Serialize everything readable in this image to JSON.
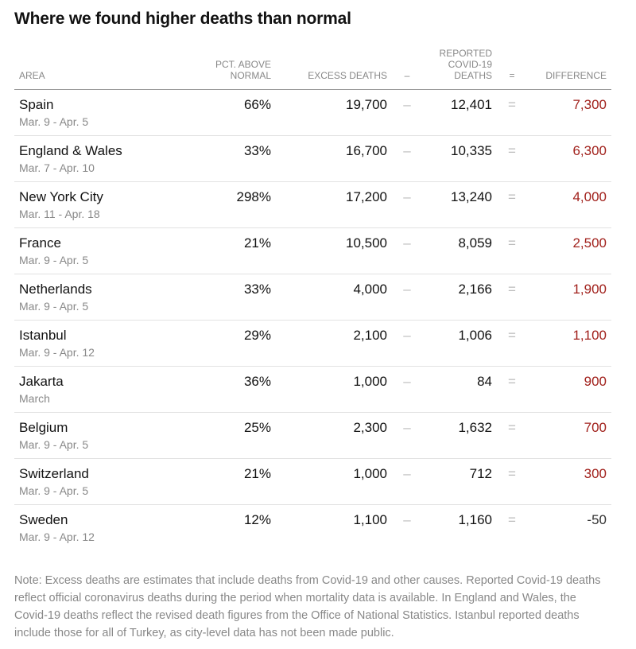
{
  "title": "Where we found higher deaths than normal",
  "colors": {
    "difference_positive": "#a1211c",
    "difference_negative": "#333333",
    "muted_text": "#888888"
  },
  "chart_data": {
    "type": "table",
    "columns": {
      "area": "AREA",
      "pct": "PCT. ABOVE NORMAL",
      "excess": "EXCESS DEATHS",
      "minus": "–",
      "reported": "REPORTED COVID-19 DEATHS",
      "equals": "=",
      "difference": "DIFFERENCE"
    },
    "rows": [
      {
        "area": "Spain",
        "dates": "Mar. 9 - Apr. 5",
        "pct": "66%",
        "excess": "19,700",
        "reported": "12,401",
        "difference": "7,300",
        "difference_value": 7300
      },
      {
        "area": "England & Wales",
        "dates": "Mar. 7 - Apr. 10",
        "pct": "33%",
        "excess": "16,700",
        "reported": "10,335",
        "difference": "6,300",
        "difference_value": 6300
      },
      {
        "area": "New York City",
        "dates": "Mar. 11 - Apr. 18",
        "pct": "298%",
        "excess": "17,200",
        "reported": "13,240",
        "difference": "4,000",
        "difference_value": 4000
      },
      {
        "area": "France",
        "dates": "Mar. 9 - Apr. 5",
        "pct": "21%",
        "excess": "10,500",
        "reported": "8,059",
        "difference": "2,500",
        "difference_value": 2500
      },
      {
        "area": "Netherlands",
        "dates": "Mar. 9 - Apr. 5",
        "pct": "33%",
        "excess": "4,000",
        "reported": "2,166",
        "difference": "1,900",
        "difference_value": 1900
      },
      {
        "area": "Istanbul",
        "dates": "Mar. 9 - Apr. 12",
        "pct": "29%",
        "excess": "2,100",
        "reported": "1,006",
        "difference": "1,100",
        "difference_value": 1100
      },
      {
        "area": "Jakarta",
        "dates": "March",
        "pct": "36%",
        "excess": "1,000",
        "reported": "84",
        "difference": "900",
        "difference_value": 900
      },
      {
        "area": "Belgium",
        "dates": "Mar. 9 - Apr. 5",
        "pct": "25%",
        "excess": "2,300",
        "reported": "1,632",
        "difference": "700",
        "difference_value": 700
      },
      {
        "area": "Switzerland",
        "dates": "Mar. 9 - Apr. 5",
        "pct": "21%",
        "excess": "1,000",
        "reported": "712",
        "difference": "300",
        "difference_value": 300
      },
      {
        "area": "Sweden",
        "dates": "Mar. 9 - Apr. 12",
        "pct": "12%",
        "excess": "1,100",
        "reported": "1,160",
        "difference": "-50",
        "difference_value": -50
      }
    ],
    "operators": {
      "minus": "–",
      "equals": "="
    }
  },
  "note": "Note: Excess deaths are estimates that include deaths from Covid-19 and other causes. Reported Covid-19 deaths reflect official coronavirus deaths during the period when mortality data is available. In England and Wales, the Covid-19 deaths reflect the revised death figures from the Office of National Statistics. Istanbul reported deaths include those for all of Turkey, as city-level data has not been made public."
}
